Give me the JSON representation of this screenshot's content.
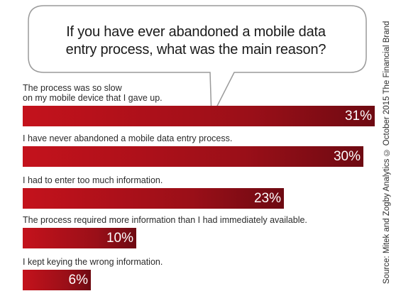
{
  "question": {
    "line1": "If you have ever abandoned a mobile data",
    "line2": "entry process, what was the main reason?"
  },
  "source": "Source: Mitek and Zogby Analytics © October 2015 The Financial Brand",
  "colors": {
    "bar_start": "#c4121c",
    "bar_end": "#6e0a12",
    "bubble_border": "#9a9a9a",
    "text": "#2b2b2b"
  },
  "chart_data": {
    "type": "bar",
    "orientation": "horizontal",
    "title": "If you have ever abandoned a mobile data entry process, what was the main reason?",
    "categories": [
      "The process was so slow on my mobile device that I gave up.",
      "I have never abandoned a mobile data entry process.",
      "I had to enter too much information.",
      "The process required more information than I had immediately available.",
      "I kept keying the wrong information."
    ],
    "label_lines": [
      [
        "The process was so slow",
        "on my mobile device that I gave up."
      ],
      [
        "I have never abandoned a mobile data entry process."
      ],
      [
        "I had to enter too much information."
      ],
      [
        "The process required more information than I had immediately available."
      ],
      [
        "I kept keying the wrong information."
      ]
    ],
    "values": [
      31,
      30,
      23,
      10,
      6
    ],
    "value_labels": [
      "31%",
      "30%",
      "23%",
      "10%",
      "6%"
    ],
    "xlim": [
      0,
      31
    ],
    "unit": "%",
    "grid": false,
    "legend": "none"
  }
}
